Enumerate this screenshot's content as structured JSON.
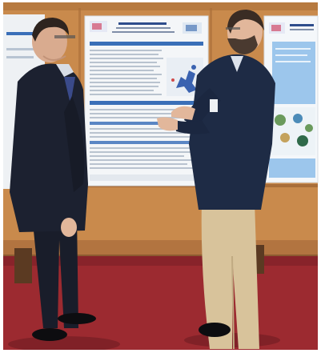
{
  "photo": {
    "colors": {
      "frame": "#ffffff",
      "wall": "#c98a4c",
      "wall_dark": "#9c6233",
      "carpet": "#9c2a30",
      "carpet_shadow": "#6e1c22",
      "poster_paper": "#f4f6f8",
      "poster_blue": "#3a6fb8",
      "poster_light_blue": "#9cc6ec",
      "suit_dark": "#1c2130",
      "jacket_navy": "#1e2b45",
      "chinos": "#d8c39b",
      "skin": "#e2b79b",
      "hair": "#3a2c24",
      "shoes": "#0d0d10"
    },
    "icons": [
      "poster-left-panel",
      "poster-center-panel",
      "poster-right-panel",
      "man-in-dark-suit",
      "man-in-navy-jacket"
    ]
  }
}
